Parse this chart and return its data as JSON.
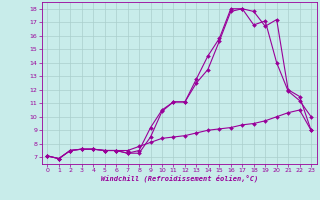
{
  "x": [
    0,
    1,
    2,
    3,
    4,
    5,
    6,
    7,
    8,
    9,
    10,
    11,
    12,
    13,
    14,
    15,
    16,
    17,
    18,
    19,
    20,
    21,
    22,
    23
  ],
  "line1": [
    7.1,
    6.9,
    7.5,
    7.6,
    7.6,
    7.5,
    7.5,
    7.3,
    7.3,
    8.5,
    10.4,
    11.1,
    11.1,
    12.8,
    14.5,
    15.8,
    18.0,
    18.0,
    16.8,
    17.1,
    14.0,
    11.9,
    11.2,
    10.0
  ],
  "line2": [
    7.1,
    6.9,
    7.5,
    7.6,
    7.6,
    7.5,
    7.5,
    7.3,
    7.5,
    9.2,
    10.5,
    11.1,
    11.1,
    12.5,
    13.5,
    15.6,
    17.8,
    18.0,
    17.8,
    16.7,
    17.2,
    12.0,
    11.5,
    9.0
  ],
  "line3": [
    7.1,
    6.9,
    7.5,
    7.6,
    7.6,
    7.5,
    7.5,
    7.5,
    7.8,
    8.1,
    8.4,
    8.5,
    8.6,
    8.8,
    9.0,
    9.1,
    9.2,
    9.4,
    9.5,
    9.7,
    10.0,
    10.3,
    10.5,
    9.0
  ],
  "line_color": "#990099",
  "bg_color": "#c8ecea",
  "grid_color": "#aacfcc",
  "xlabel": "Windchill (Refroidissement éolien,°C)",
  "ylim": [
    6.5,
    18.5
  ],
  "xlim": [
    -0.5,
    23.5
  ],
  "yticks": [
    7,
    8,
    9,
    10,
    11,
    12,
    13,
    14,
    15,
    16,
    17,
    18
  ],
  "xticks": [
    0,
    1,
    2,
    3,
    4,
    5,
    6,
    7,
    8,
    9,
    10,
    11,
    12,
    13,
    14,
    15,
    16,
    17,
    18,
    19,
    20,
    21,
    22,
    23
  ]
}
